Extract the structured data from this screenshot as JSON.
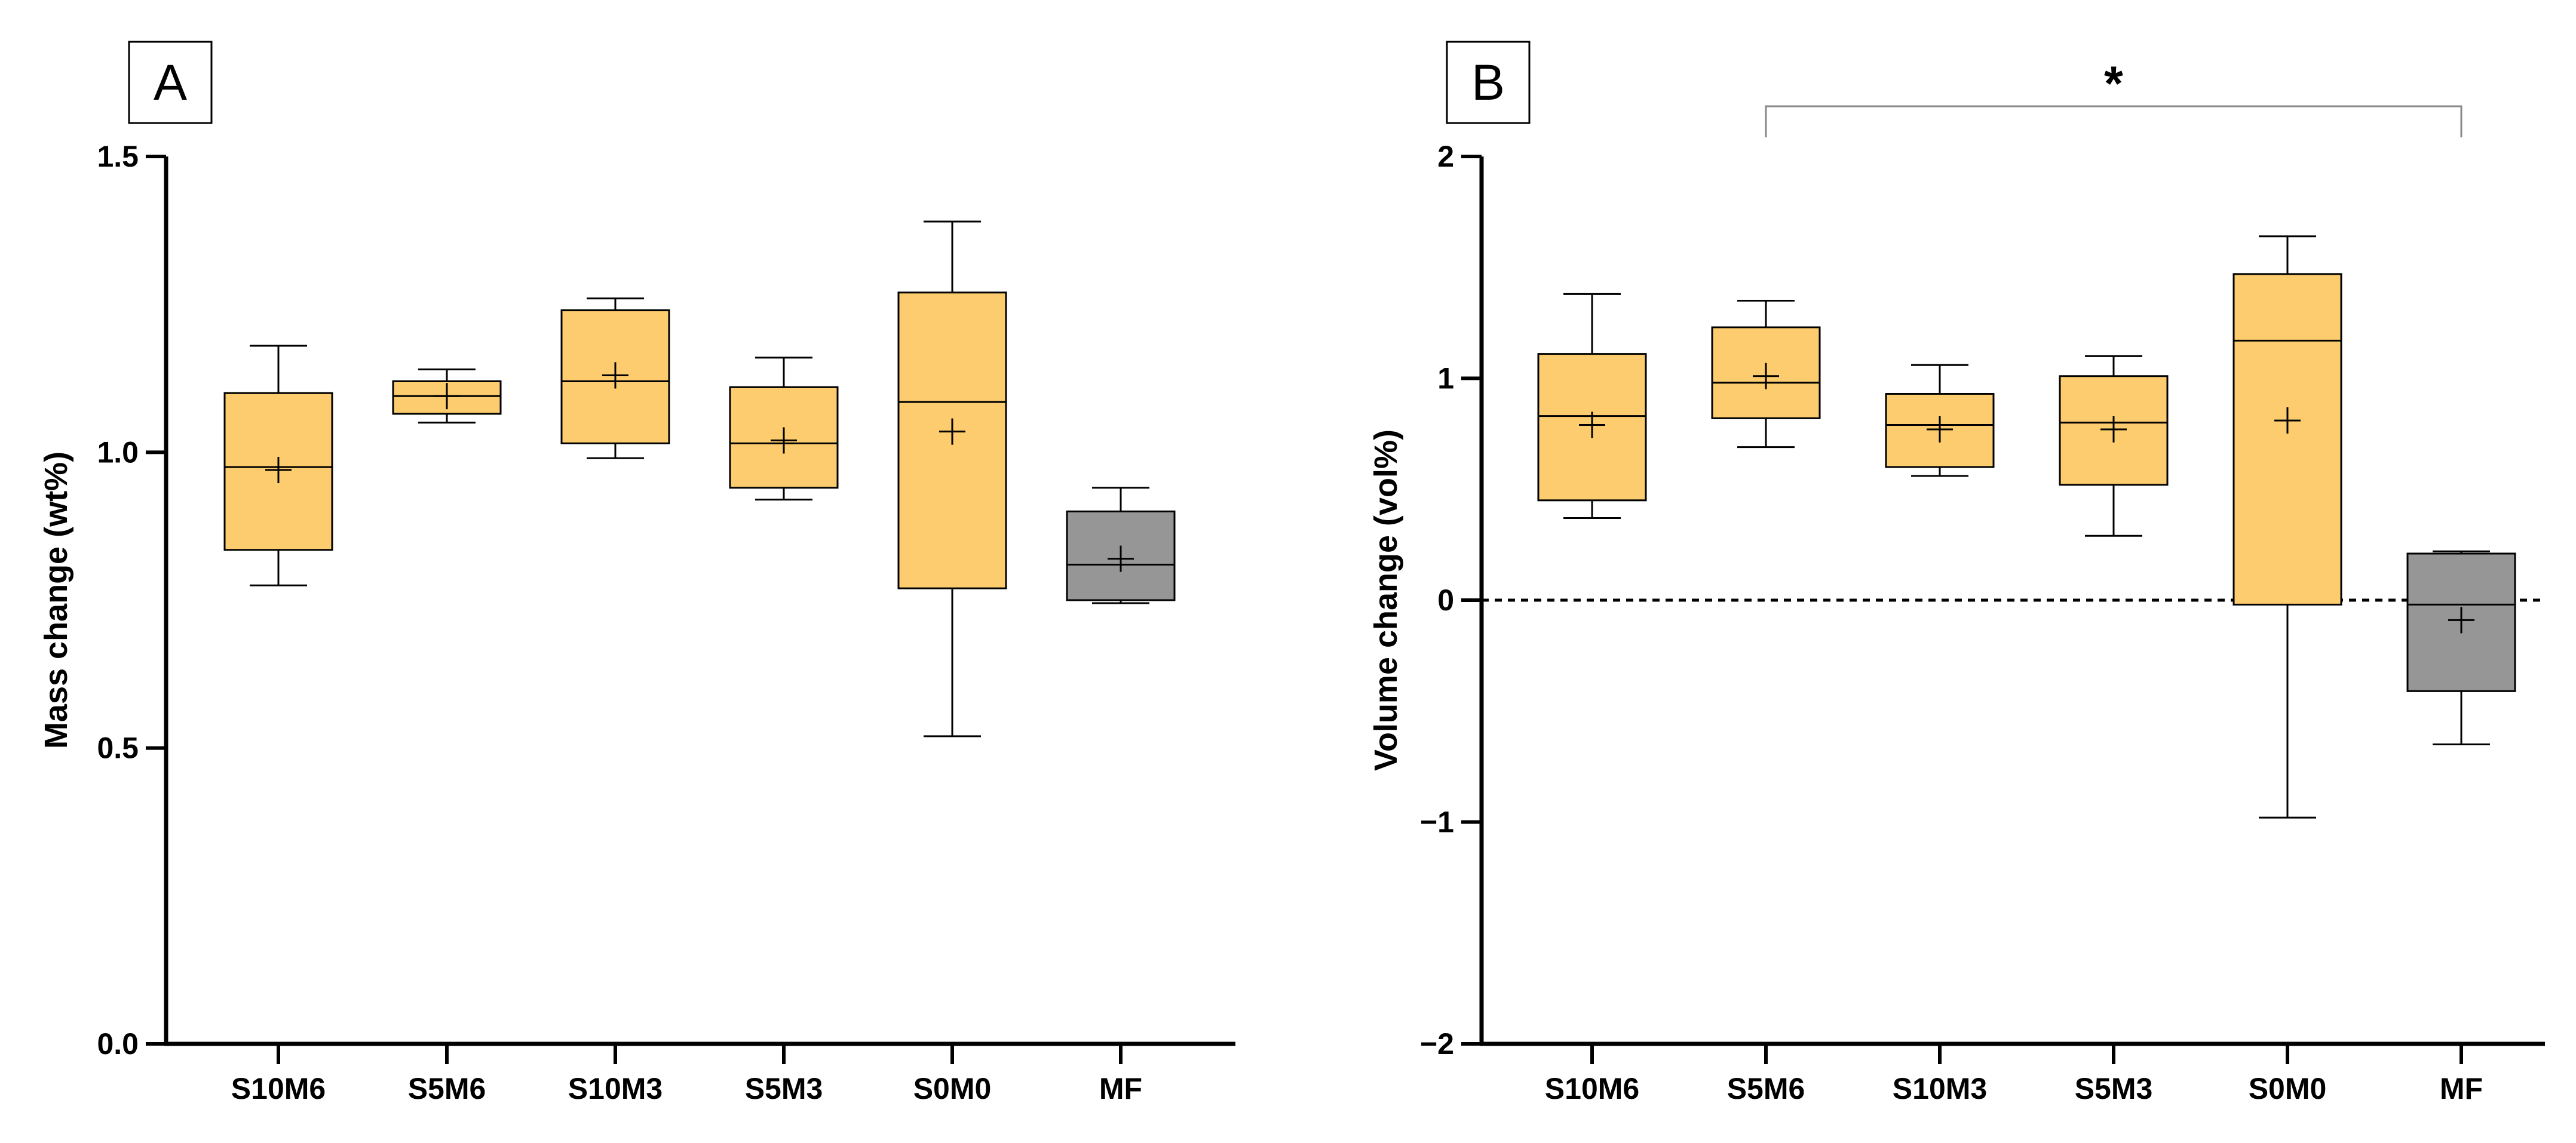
{
  "chart_data": [
    {
      "type": "box",
      "panel_label": "A",
      "title": "",
      "xlabel": "",
      "ylabel": "Mass change (wt%)",
      "ylim": [
        0,
        1.5
      ],
      "yticks": [
        0,
        0.5,
        1.0,
        1.5
      ],
      "ytick_labels": [
        "0.0",
        "0.5",
        "1.0",
        "1.5"
      ],
      "grid": false,
      "categories": [
        "S10M6",
        "S5M6",
        "S10M3",
        "S5M3",
        "S0M0",
        "MF"
      ],
      "colors": [
        "#fdcc6e",
        "#fdcc6e",
        "#fdcc6e",
        "#fdcc6e",
        "#fdcc6e",
        "#969696"
      ],
      "boxes": [
        {
          "min": 0.775,
          "q1": 0.835,
          "median": 0.975,
          "q3": 1.1,
          "max": 1.18,
          "mean": 0.97
        },
        {
          "min": 1.05,
          "q1": 1.065,
          "median": 1.095,
          "q3": 1.12,
          "max": 1.14,
          "mean": 1.095
        },
        {
          "min": 0.99,
          "q1": 1.015,
          "median": 1.12,
          "q3": 1.24,
          "max": 1.26,
          "mean": 1.13
        },
        {
          "min": 0.92,
          "q1": 0.94,
          "median": 1.015,
          "q3": 1.11,
          "max": 1.16,
          "mean": 1.02
        },
        {
          "min": 0.52,
          "q1": 0.77,
          "median": 1.085,
          "q3": 1.27,
          "max": 1.39,
          "mean": 1.035
        },
        {
          "min": 0.745,
          "q1": 0.75,
          "median": 0.81,
          "q3": 0.9,
          "max": 0.94,
          "mean": 0.82
        }
      ]
    },
    {
      "type": "box",
      "panel_label": "B",
      "title": "",
      "xlabel": "",
      "ylabel": "Volume change (vol%)",
      "ylim": [
        -2,
        2
      ],
      "yticks": [
        -2,
        -1,
        0,
        1,
        2
      ],
      "ytick_labels": [
        "−2",
        "−1",
        "0",
        "1",
        "2"
      ],
      "grid": false,
      "reference_line": 0,
      "categories": [
        "S10M6",
        "S5M6",
        "S10M3",
        "S5M3",
        "S0M0",
        "MF"
      ],
      "colors": [
        "#fdcc6e",
        "#fdcc6e",
        "#fdcc6e",
        "#fdcc6e",
        "#fdcc6e",
        "#969696"
      ],
      "boxes": [
        {
          "min": 0.37,
          "q1": 0.45,
          "median": 0.83,
          "q3": 1.11,
          "max": 1.38,
          "mean": 0.79
        },
        {
          "min": 0.69,
          "q1": 0.82,
          "median": 0.98,
          "q3": 1.23,
          "max": 1.35,
          "mean": 1.01
        },
        {
          "min": 0.56,
          "q1": 0.6,
          "median": 0.79,
          "q3": 0.93,
          "max": 1.06,
          "mean": 0.77
        },
        {
          "min": 0.29,
          "q1": 0.52,
          "median": 0.8,
          "q3": 1.01,
          "max": 1.1,
          "mean": 0.77
        },
        {
          "min": -0.98,
          "q1": -0.02,
          "median": 1.17,
          "q3": 1.47,
          "max": 1.64,
          "mean": 0.81
        },
        {
          "min": -0.65,
          "q1": -0.41,
          "median": -0.02,
          "q3": 0.21,
          "max": 0.22,
          "mean": -0.09
        }
      ],
      "annotations": [
        {
          "type": "significance_bracket",
          "from": "S5M6",
          "to": "MF",
          "text": "*"
        }
      ]
    }
  ]
}
